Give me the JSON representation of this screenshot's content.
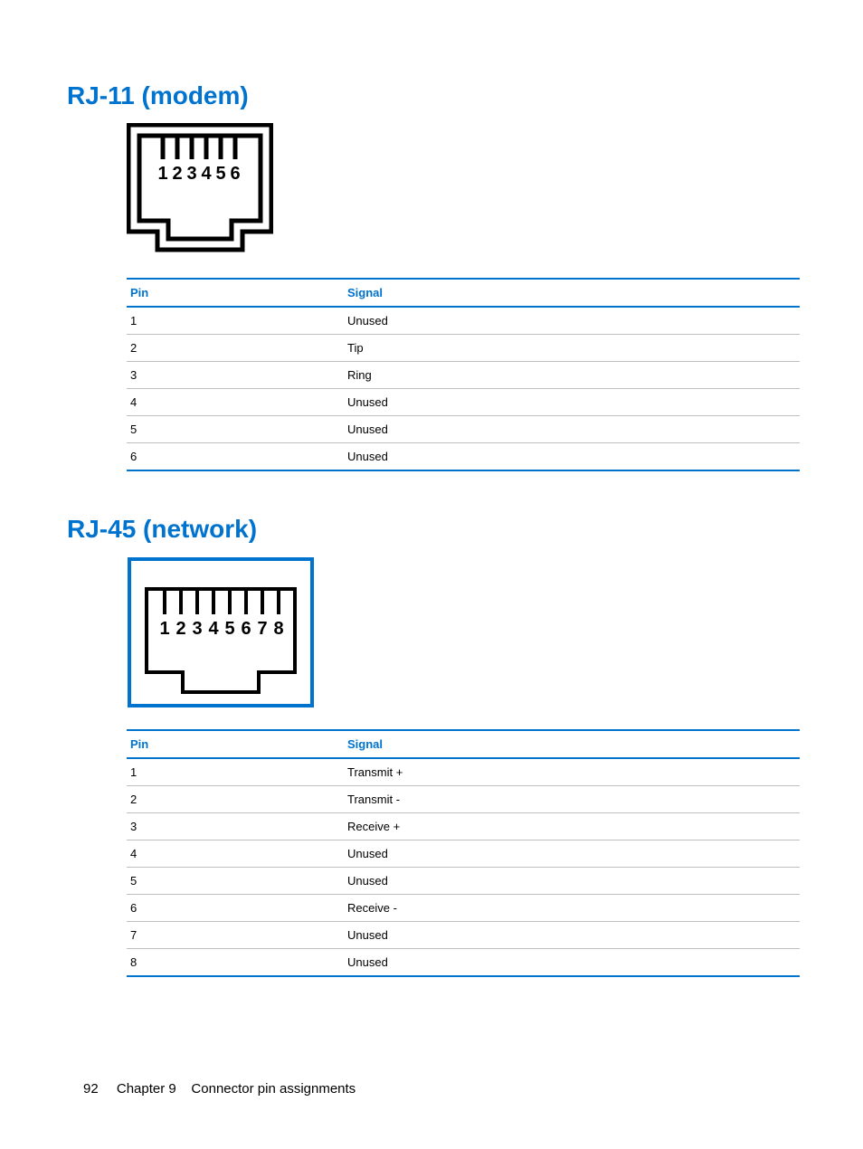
{
  "colors": {
    "heading": "#0073cf",
    "table_border": "#0073cf",
    "row_divider": "#bfbfbf",
    "text": "#000000",
    "background": "#ffffff"
  },
  "section1": {
    "title": "RJ-11 (modem)",
    "diagram": {
      "pin_count": 6,
      "labels": [
        "1",
        "2",
        "3",
        "4",
        "5",
        "6"
      ],
      "stroke_width": 5
    },
    "headers": {
      "pin": "Pin",
      "signal": "Signal"
    },
    "rows": [
      {
        "pin": "1",
        "signal": "Unused"
      },
      {
        "pin": "2",
        "signal": "Tip"
      },
      {
        "pin": "3",
        "signal": "Ring"
      },
      {
        "pin": "4",
        "signal": "Unused"
      },
      {
        "pin": "5",
        "signal": "Unused"
      },
      {
        "pin": "6",
        "signal": "Unused"
      }
    ]
  },
  "section2": {
    "title": "RJ-45 (network)",
    "diagram": {
      "pin_count": 8,
      "labels": [
        "1",
        "2",
        "3",
        "4",
        "5",
        "6",
        "7",
        "8"
      ],
      "stroke_width": 4,
      "border_color": "#0073cf"
    },
    "headers": {
      "pin": "Pin",
      "signal": "Signal"
    },
    "rows": [
      {
        "pin": "1",
        "signal": "Transmit +"
      },
      {
        "pin": "2",
        "signal": "Transmit -"
      },
      {
        "pin": "3",
        "signal": "Receive +"
      },
      {
        "pin": "4",
        "signal": "Unused"
      },
      {
        "pin": "5",
        "signal": "Unused"
      },
      {
        "pin": "6",
        "signal": "Receive -"
      },
      {
        "pin": "7",
        "signal": "Unused"
      },
      {
        "pin": "8",
        "signal": "Unused"
      }
    ]
  },
  "footer": {
    "page_number": "92",
    "chapter_label": "Chapter 9",
    "chapter_title": "Connector pin assignments"
  }
}
